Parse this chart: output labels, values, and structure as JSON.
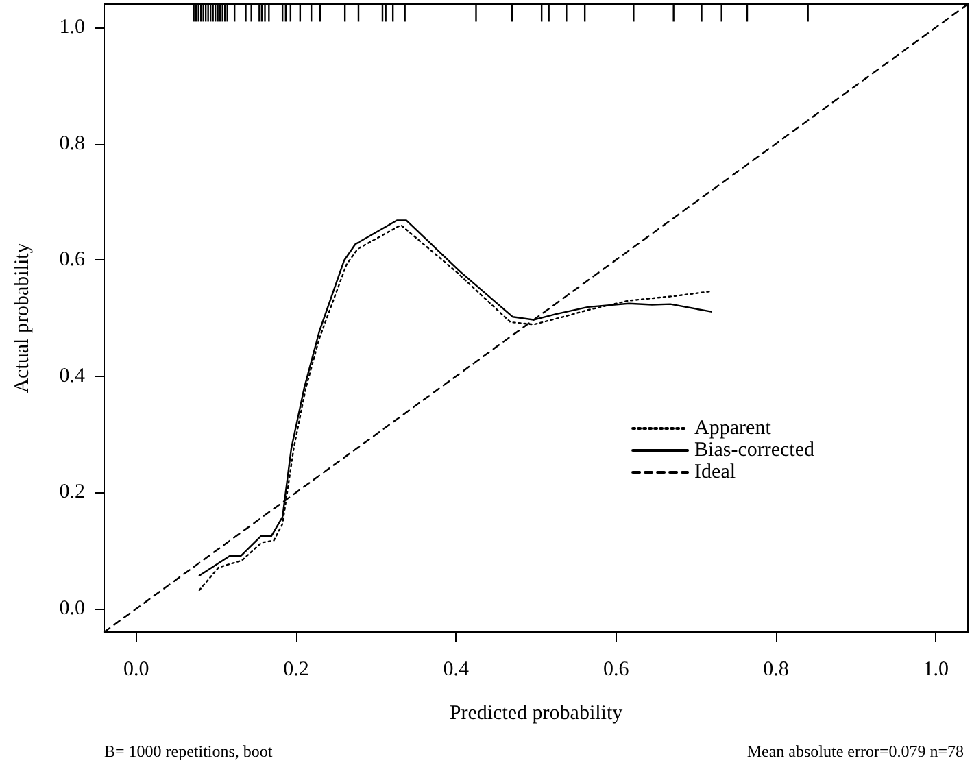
{
  "chart_data": {
    "type": "line",
    "xlabel": "Predicted probability",
    "ylabel": "Actual probability",
    "xlim": [
      -0.04,
      1.04
    ],
    "ylim": [
      -0.04,
      1.04
    ],
    "xticks": [
      {
        "value": 0,
        "label": "0.0"
      },
      0.2,
      0.4,
      0.6,
      0.8,
      {
        "value": 1,
        "label": "1.0"
      }
    ],
    "yticks": [
      {
        "value": 0,
        "label": "0.0"
      },
      0.2,
      0.4,
      0.6,
      0.8,
      {
        "value": 1,
        "label": "1.0"
      }
    ],
    "grid": false,
    "legend": "right",
    "marker": "none",
    "annotations": [
      "B= 1000 repetitions, boot",
      "Mean absolute error=0.079 n=78"
    ],
    "series": [
      {
        "name": "Apparent",
        "color": "#000000",
        "line_style": "dotted",
        "x": [
          0.079,
          0.103,
          0.132,
          0.157,
          0.172,
          0.183,
          0.197,
          0.212,
          0.229,
          0.263,
          0.277,
          0.331,
          0.4,
          0.468,
          0.497,
          0.531,
          0.565,
          0.616,
          0.674,
          0.719
        ],
        "values": [
          0.032,
          0.071,
          0.083,
          0.114,
          0.117,
          0.146,
          0.276,
          0.379,
          0.465,
          0.592,
          0.619,
          0.66,
          0.58,
          0.493,
          0.489,
          0.501,
          0.514,
          0.53,
          0.538,
          0.546
        ]
      },
      {
        "name": "Bias-corrected",
        "color": "#000000",
        "line_style": "solid",
        "x": [
          0.079,
          0.117,
          0.131,
          0.156,
          0.169,
          0.183,
          0.194,
          0.21,
          0.229,
          0.26,
          0.274,
          0.326,
          0.338,
          0.405,
          0.471,
          0.497,
          0.525,
          0.565,
          0.616,
          0.645,
          0.668,
          0.719
        ],
        "values": [
          0.057,
          0.091,
          0.091,
          0.125,
          0.125,
          0.158,
          0.276,
          0.379,
          0.477,
          0.599,
          0.627,
          0.668,
          0.668,
          0.58,
          0.502,
          0.497,
          0.507,
          0.519,
          0.525,
          0.523,
          0.524,
          0.511
        ]
      },
      {
        "name": "Ideal",
        "color": "#000000",
        "line_style": "dashed",
        "x": [
          -0.04,
          1.04
        ],
        "values": [
          -0.04,
          1.04
        ]
      },
      {
        "type": "bar",
        "color": "#000000",
        "base": [
          1.01,
          1.01,
          1.01,
          1.01,
          1.01,
          1.01,
          1.01,
          1.01,
          1.01,
          1.01,
          1.01,
          1.01,
          1.01,
          1.01,
          1.01,
          1.01,
          1.01,
          1.01,
          1.01,
          1.01,
          1.01,
          1.01,
          1.01,
          1.01,
          1.01,
          1.01,
          1.01,
          1.01,
          1.01,
          1.01,
          1.01,
          1.01,
          1.01,
          1.01,
          1.01,
          1.01,
          1.01,
          1.01,
          1.01,
          1.01,
          1.01,
          1.01,
          1.01,
          1.01,
          1.01,
          1.01
        ],
        "x": [
          0.072,
          0.075,
          0.078,
          0.081,
          0.084,
          0.087,
          0.09,
          0.093,
          0.096,
          0.099,
          0.102,
          0.105,
          0.108,
          0.111,
          0.114,
          0.123,
          0.137,
          0.144,
          0.154,
          0.157,
          0.161,
          0.166,
          0.183,
          0.187,
          0.193,
          0.205,
          0.219,
          0.23,
          0.261,
          0.278,
          0.308,
          0.312,
          0.321,
          0.336,
          0.425,
          0.47,
          0.507,
          0.516,
          0.538,
          0.561,
          0.622,
          0.672,
          0.707,
          0.732,
          0.764,
          0.84
        ],
        "values": [
          0.03,
          0.03,
          0.03,
          0.03,
          0.03,
          0.03,
          0.03,
          0.03,
          0.03,
          0.03,
          0.03,
          0.03,
          0.03,
          0.03,
          0.03,
          0.03,
          0.03,
          0.03,
          0.03,
          0.03,
          0.03,
          0.03,
          0.03,
          0.03,
          0.03,
          0.03,
          0.03,
          0.03,
          0.03,
          0.03,
          0.03,
          0.03,
          0.03,
          0.03,
          0.03,
          0.03,
          0.03,
          0.03,
          0.03,
          0.03,
          0.03,
          0.03,
          0.03,
          0.03,
          0.03,
          0.03
        ]
      }
    ]
  }
}
